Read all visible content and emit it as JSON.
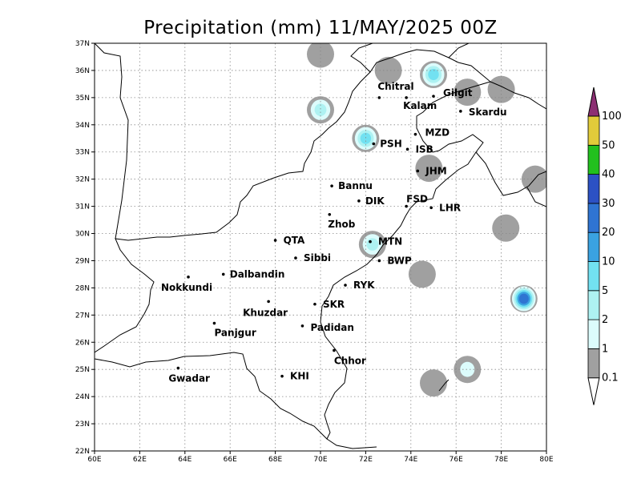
{
  "title": "Precipitation (mm) 11/MAY/2025 00Z",
  "map": {
    "lon_range": [
      60,
      80
    ],
    "lat_range": [
      22,
      37
    ],
    "x_ticks": [
      "60E",
      "62E",
      "64E",
      "66E",
      "68E",
      "70E",
      "72E",
      "74E",
      "76E",
      "78E",
      "80E"
    ],
    "y_ticks": [
      "22N",
      "23N",
      "24N",
      "25N",
      "26N",
      "27N",
      "28N",
      "29N",
      "30N",
      "31N",
      "32N",
      "33N",
      "34N",
      "35N",
      "36N",
      "37N"
    ],
    "grid": "dotted"
  },
  "cities": [
    {
      "name": "Chitral",
      "lon": 72.6,
      "lat": 35.0
    },
    {
      "name": "Gilgit",
      "lon": 75.0,
      "lat": 35.05
    },
    {
      "name": "Kalam",
      "lon": 73.8,
      "lat": 35.0
    },
    {
      "name": "Skardu",
      "lon": 76.2,
      "lat": 34.5
    },
    {
      "name": "MZD",
      "lon": 74.2,
      "lat": 33.65
    },
    {
      "name": "PSH",
      "lon": 72.35,
      "lat": 33.3
    },
    {
      "name": "ISB",
      "lon": 73.85,
      "lat": 33.1
    },
    {
      "name": "JHM",
      "lon": 74.3,
      "lat": 32.3
    },
    {
      "name": "Bannu",
      "lon": 70.5,
      "lat": 31.75
    },
    {
      "name": "DIK",
      "lon": 71.7,
      "lat": 31.2
    },
    {
      "name": "FSD",
      "lon": 73.8,
      "lat": 31.0
    },
    {
      "name": "LHR",
      "lon": 74.9,
      "lat": 30.95
    },
    {
      "name": "Zhob",
      "lon": 70.4,
      "lat": 30.7
    },
    {
      "name": "QTA",
      "lon": 68.0,
      "lat": 29.75
    },
    {
      "name": "MTN",
      "lon": 72.2,
      "lat": 29.7
    },
    {
      "name": "Sibbi",
      "lon": 68.9,
      "lat": 29.1
    },
    {
      "name": "BWP",
      "lon": 72.6,
      "lat": 29.0
    },
    {
      "name": "Dalbandin",
      "lon": 65.7,
      "lat": 28.5
    },
    {
      "name": "Nokkundi",
      "lon": 64.15,
      "lat": 28.4
    },
    {
      "name": "RYK",
      "lon": 71.1,
      "lat": 28.1
    },
    {
      "name": "Khuzdar",
      "lon": 67.7,
      "lat": 27.5
    },
    {
      "name": "SKR",
      "lon": 69.75,
      "lat": 27.4
    },
    {
      "name": "Panjgur",
      "lon": 65.3,
      "lat": 26.7
    },
    {
      "name": "Padidan",
      "lon": 69.2,
      "lat": 26.6
    },
    {
      "name": "Chhor",
      "lon": 70.6,
      "lat": 25.7
    },
    {
      "name": "Gwadar",
      "lon": 63.7,
      "lat": 25.05
    },
    {
      "name": "KHI",
      "lon": 68.3,
      "lat": 24.75
    }
  ],
  "colorbar": {
    "levels": [
      "0.1",
      "1",
      "2",
      "5",
      "10",
      "20",
      "30",
      "40",
      "50",
      "100"
    ],
    "colors": [
      "#a0a0a0",
      "#dcfcfc",
      "#aef2f2",
      "#72e1f1",
      "#3aa2e1",
      "#2f74d2",
      "#2c51c4",
      "#22c01e",
      "#e1cb3a",
      "#e73a3a",
      "#8c2f73"
    ]
  },
  "precip_blobs": [
    {
      "lon": 73.0,
      "lat": 36.0,
      "level": "0.1"
    },
    {
      "lon": 75.0,
      "lat": 35.85,
      "level": "5"
    },
    {
      "lon": 70.0,
      "lat": 34.55,
      "level": "2"
    },
    {
      "lon": 72.0,
      "lat": 33.5,
      "level": "5"
    },
    {
      "lon": 70.0,
      "lat": 36.6,
      "level": "0.1"
    },
    {
      "lon": 76.5,
      "lat": 35.2,
      "level": "0.1"
    },
    {
      "lon": 78.0,
      "lat": 35.3,
      "level": "0.1"
    },
    {
      "lon": 74.8,
      "lat": 32.4,
      "level": "0.1"
    },
    {
      "lon": 72.3,
      "lat": 29.6,
      "level": "2"
    },
    {
      "lon": 74.5,
      "lat": 28.5,
      "level": "0.1"
    },
    {
      "lon": 78.2,
      "lat": 30.2,
      "level": "0.1"
    },
    {
      "lon": 79.5,
      "lat": 32.0,
      "level": "0.1"
    },
    {
      "lon": 79.0,
      "lat": 27.6,
      "level": "20"
    },
    {
      "lon": 75.0,
      "lat": 24.5,
      "level": "0.1"
    },
    {
      "lon": 76.5,
      "lat": 25.0,
      "level": "1"
    }
  ]
}
